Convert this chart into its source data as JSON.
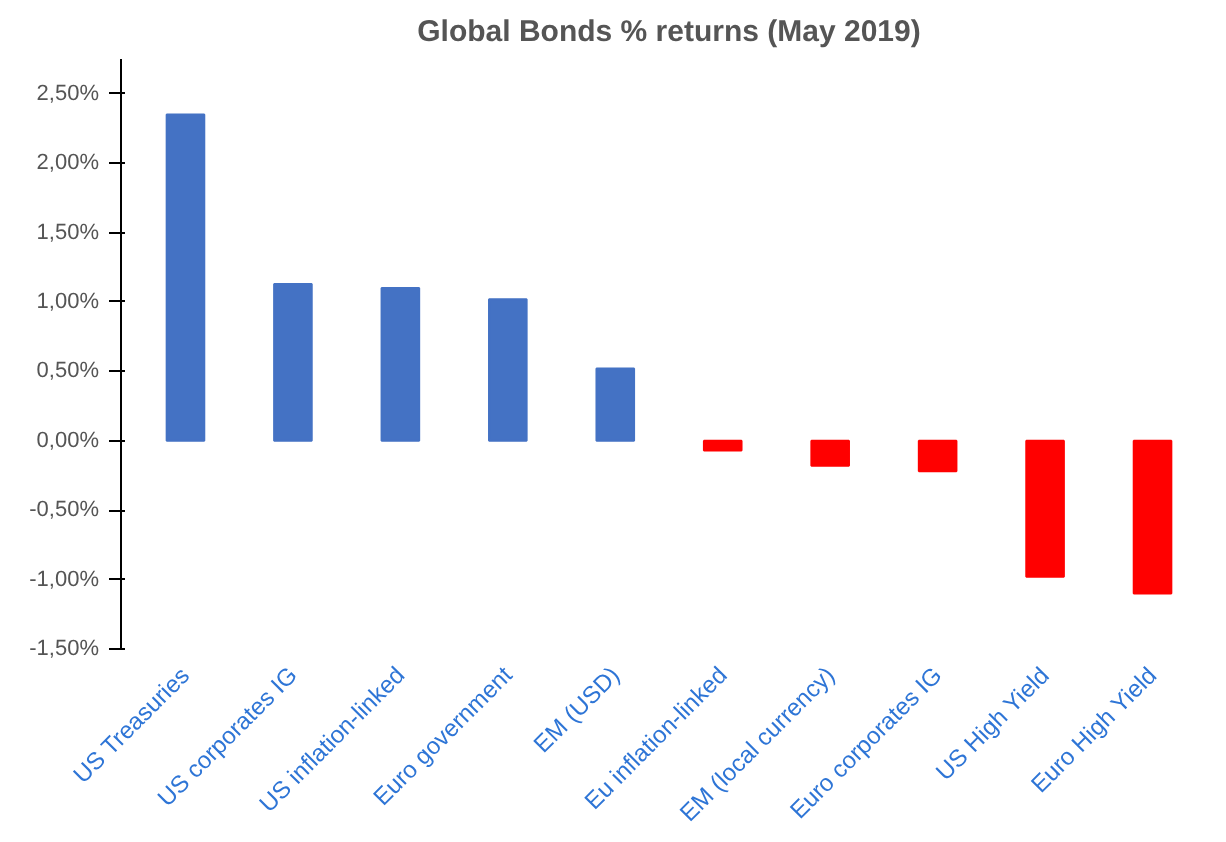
{
  "chart_data": {
    "type": "bar",
    "title": "Global Bonds % returns (May 2019)",
    "categories": [
      "US Treasuries",
      "US corporates IG",
      "US inflation-linked",
      "Euro government",
      "EM (USD)",
      "Eu inflation-linked",
      "EM (local currency)",
      "Euro corporates IG",
      "US High Yield",
      "Euro High Yield"
    ],
    "values": [
      2.35,
      1.13,
      1.1,
      1.02,
      0.52,
      -0.07,
      -0.18,
      -0.22,
      -0.98,
      -1.1
    ],
    "colors": [
      "#4472c4",
      "#4472c4",
      "#4472c4",
      "#4472c4",
      "#4472c4",
      "#ff0000",
      "#ff0000",
      "#ff0000",
      "#ff0000",
      "#ff0000"
    ],
    "ylim": [
      -1.5,
      2.75
    ],
    "yticks": [
      {
        "value": -1.5,
        "label": "-1,50%"
      },
      {
        "value": -1.0,
        "label": "-1,00%"
      },
      {
        "value": -0.5,
        "label": "-0,50%"
      },
      {
        "value": 0,
        "label": "0,00%"
      },
      {
        "value": 0.5,
        "label": "0,50%"
      },
      {
        "value": 1.0,
        "label": "1,00%"
      },
      {
        "value": 1.5,
        "label": "1,50%"
      },
      {
        "value": 2.0,
        "label": "2,00%"
      },
      {
        "value": 2.5,
        "label": "2,50%"
      }
    ],
    "grid": false
  }
}
